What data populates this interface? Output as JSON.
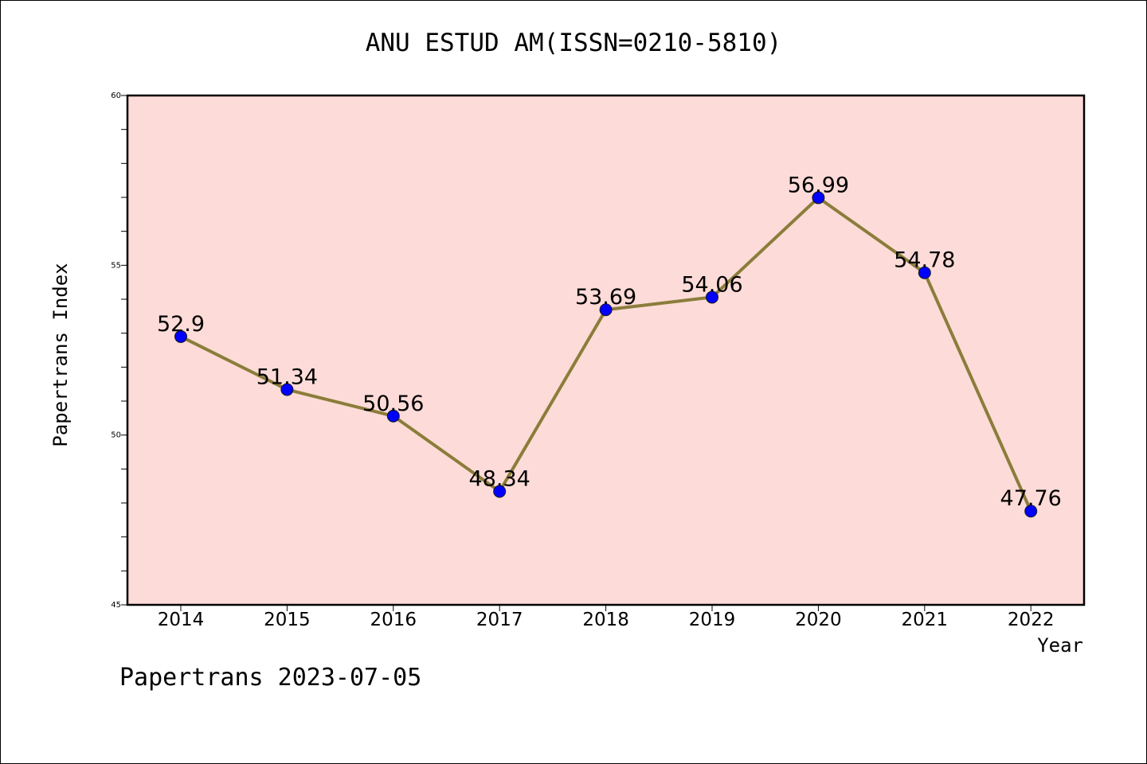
{
  "footer_text": "Papertrans 2023-07-05",
  "chart_data": {
    "type": "line",
    "title": "ANU ESTUD AM(ISSN=0210-5810)",
    "xlabel": "Year",
    "ylabel": "Papertrans Index",
    "categories": [
      "2014",
      "2015",
      "2016",
      "2017",
      "2018",
      "2019",
      "2020",
      "2021",
      "2022"
    ],
    "values": [
      52.9,
      51.34,
      50.56,
      48.34,
      53.69,
      54.06,
      56.99,
      54.78,
      47.76
    ],
    "data_labels": [
      "52.9",
      "51.34",
      "50.56",
      "48.34",
      "53.69",
      "54.06",
      "56.99",
      "54.78",
      "47.76"
    ],
    "ylim": [
      45,
      60
    ],
    "yticks": [
      "45",
      "50",
      "55",
      "60"
    ],
    "grid": false,
    "legend": "none",
    "colors": {
      "plot_background": "#fddbd8",
      "line": "#8b7d3a",
      "marker": "#0000ff",
      "axes": "#000000"
    }
  }
}
